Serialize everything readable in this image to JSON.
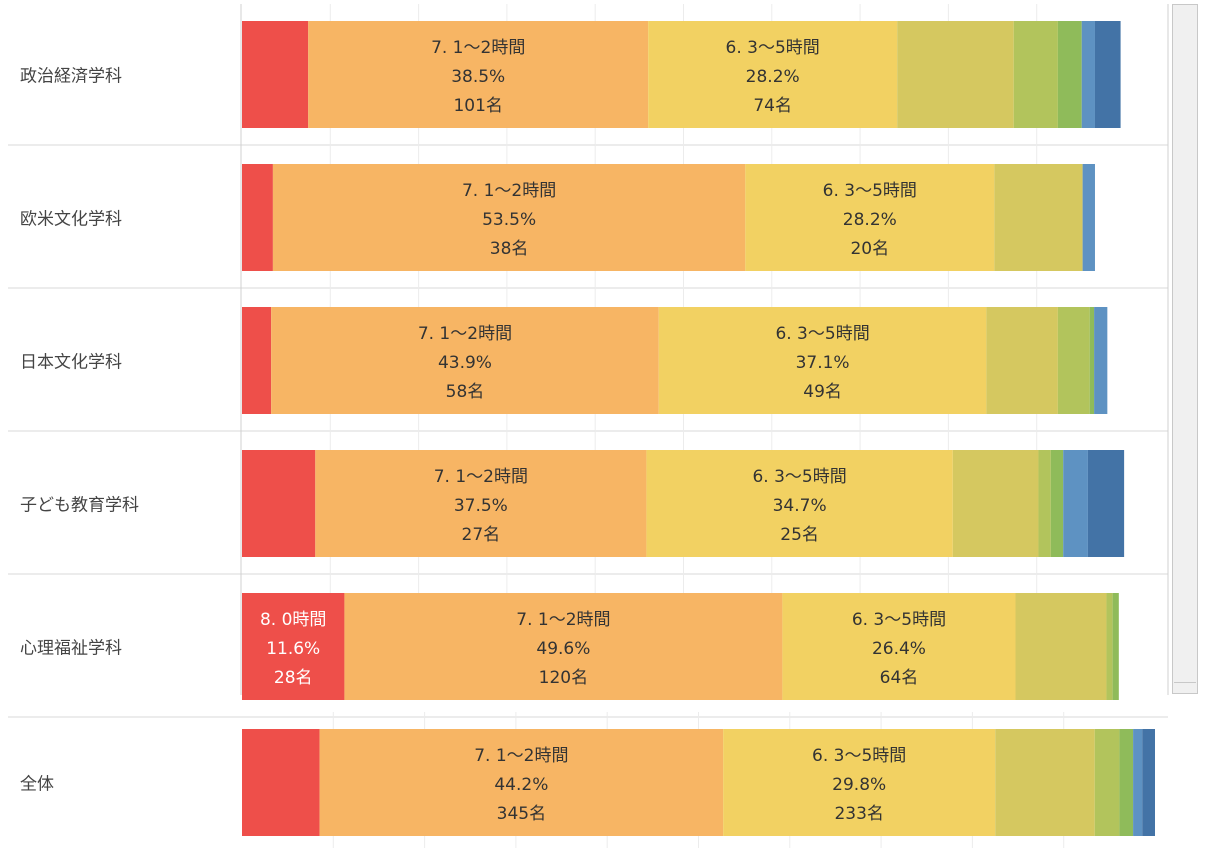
{
  "chart_data": {
    "type": "bar",
    "orientation": "horizontal",
    "stacked": "100%",
    "grid": true,
    "colors": [
      "#ee4f4a",
      "#f7b564",
      "#f2d162",
      "#d5c860",
      "#b2c45c",
      "#8fbb5a",
      "#5e92c2",
      "#4373a6"
    ],
    "categories": [
      "政治経済学科",
      "欧米文化学科",
      "日本文化学科",
      "子ども教育学科",
      "心理福祉学科",
      "全体"
    ],
    "series": [
      {
        "values": [
          7.5,
          3.5,
          3.3,
          8.3,
          11.6,
          8.5
        ]
      },
      {
        "values": [
          38.5,
          53.5,
          43.9,
          37.5,
          49.6,
          44.2
        ]
      },
      {
        "values": [
          28.2,
          28.2,
          37.1,
          34.7,
          26.4,
          29.8
        ]
      },
      {
        "values": [
          13.2,
          10.0,
          8.1,
          9.7,
          10.3,
          10.9
        ]
      },
      {
        "values": [
          5.0,
          0,
          3.6,
          1.4,
          0.7,
          2.7
        ]
      },
      {
        "values": [
          2.7,
          0,
          0.5,
          1.4,
          0.7,
          1.5
        ]
      },
      {
        "values": [
          1.5,
          1.4,
          1.5,
          2.8,
          0,
          1.0
        ]
      },
      {
        "values": [
          2.9,
          0,
          0,
          4.1,
          0,
          1.4
        ]
      }
    ],
    "labels": [
      [
        null,
        {
          "category": "7. 1〜2時間",
          "percent": "38.5%",
          "count": "101名"
        },
        {
          "category": "6. 3〜5時間",
          "percent": "28.2%",
          "count": "74名"
        }
      ],
      [
        null,
        {
          "category": "7. 1〜2時間",
          "percent": "53.5%",
          "count": "38名"
        },
        {
          "category": "6. 3〜5時間",
          "percent": "28.2%",
          "count": "20名"
        }
      ],
      [
        null,
        {
          "category": "7. 1〜2時間",
          "percent": "43.9%",
          "count": "58名"
        },
        {
          "category": "6. 3〜5時間",
          "percent": "37.1%",
          "count": "49名"
        }
      ],
      [
        null,
        {
          "category": "7. 1〜2時間",
          "percent": "37.5%",
          "count": "27名"
        },
        {
          "category": "6. 3〜5時間",
          "percent": "34.7%",
          "count": "25名"
        }
      ],
      [
        {
          "category": "8. 0時間",
          "percent": "11.6%",
          "count": "28名"
        },
        {
          "category": "7. 1〜2時間",
          "percent": "49.6%",
          "count": "120名"
        },
        {
          "category": "6. 3〜5時間",
          "percent": "26.4%",
          "count": "64名"
        }
      ],
      [
        null,
        {
          "category": "7. 1〜2時間",
          "percent": "44.2%",
          "count": "345名"
        },
        {
          "category": "6. 3〜5時間",
          "percent": "29.8%",
          "count": "233名"
        }
      ]
    ]
  }
}
